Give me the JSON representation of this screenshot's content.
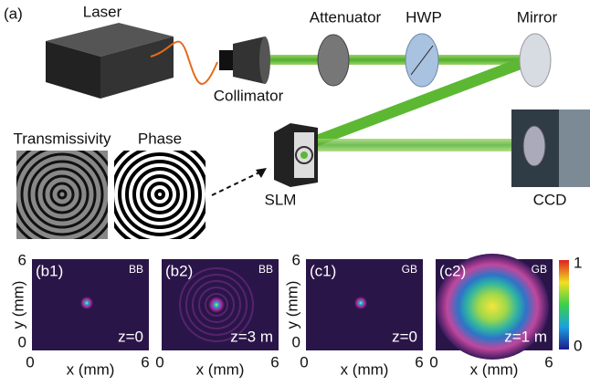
{
  "panel_a": {
    "label": "(a)",
    "components": {
      "laser": "Laser",
      "attenuator": "Attenuator",
      "hwp": "HWP",
      "mirror": "Mirror",
      "collimator": "Collimator",
      "slm": "SLM",
      "ccd": "CCD"
    },
    "patterns": [
      "Transmissivity",
      "Phase"
    ]
  },
  "panels": [
    {
      "label": "(b1)",
      "beam": "BB",
      "z": "z=0"
    },
    {
      "label": "(b2)",
      "beam": "BB",
      "z": "z=3 m"
    },
    {
      "label": "(c1)",
      "beam": "GB",
      "z": "z=0"
    },
    {
      "label": "(c2)",
      "beam": "GB",
      "z": "z=1 m"
    }
  ],
  "axes": {
    "x_label": "x (mm)",
    "y_label": "y (mm)",
    "x_ticks": [
      "0",
      "6"
    ],
    "y_ticks": [
      "6",
      "0"
    ]
  },
  "colorbar": {
    "ticks": [
      "1",
      "0"
    ]
  }
}
